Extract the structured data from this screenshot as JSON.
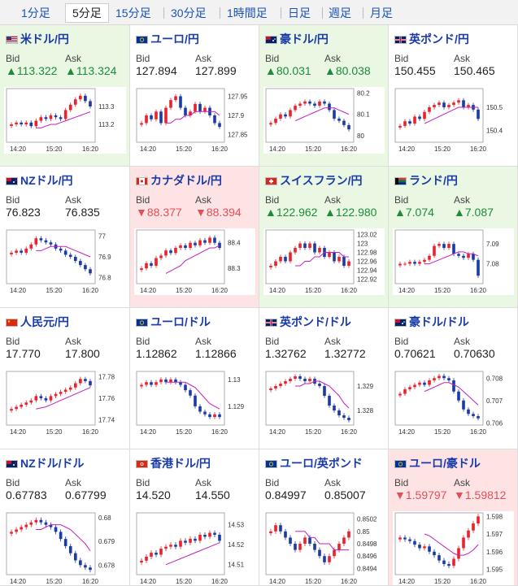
{
  "tabs": [
    "1分足",
    "5分足",
    "15分足",
    "30分足",
    "1時間足",
    "日足",
    "週足",
    "月足"
  ],
  "active_tab": "5分足",
  "colors": {
    "up": "#1e8a3a",
    "down": "#e0505a",
    "candle_up": "#e8232f",
    "candle_down": "#1c3aa6",
    "ma": "#c020c0"
  },
  "panels": [
    {
      "title": "米ドル/円",
      "flag": "US",
      "trend": "up",
      "bid": "▲113.322",
      "ask": "▲113.324",
      "bid_label": "Bid",
      "ask_label": "Ask",
      "chart_data": {
        "type": "candlestick",
        "x_ticks": [
          "14:20",
          "15:20",
          "16:20"
        ],
        "y_ticks": [
          "113.3",
          "113.2"
        ],
        "ylim": [
          113.1,
          113.4
        ],
        "close": [
          113.2,
          113.21,
          113.2,
          113.21,
          113.19,
          113.22,
          113.24,
          113.23,
          113.25,
          113.24,
          113.23,
          113.28,
          113.31,
          113.34,
          113.36,
          113.33,
          113.3
        ],
        "ma": [
          113.18,
          113.18,
          113.19,
          113.2,
          113.2,
          113.21,
          113.22,
          113.23,
          113.24,
          113.25,
          113.26,
          113.27
        ]
      }
    },
    {
      "title": "ユーロ/円",
      "flag": "EU",
      "trend": "flat",
      "bid": "127.894",
      "ask": "127.899",
      "bid_label": "Bid",
      "ask_label": "Ask",
      "chart_data": {
        "type": "candlestick",
        "x_ticks": [
          "14:20",
          "15:20",
          "16:20"
        ],
        "y_ticks": [
          "127.95",
          "127.9",
          "127.85"
        ],
        "ylim": [
          127.83,
          127.97
        ],
        "close": [
          127.88,
          127.9,
          127.89,
          127.91,
          127.88,
          127.92,
          127.94,
          127.95,
          127.92,
          127.9,
          127.91,
          127.93,
          127.91,
          127.92,
          127.9,
          127.88,
          127.87
        ],
        "ma": [
          127.88,
          127.88,
          127.89,
          127.89,
          127.9,
          127.9,
          127.91,
          127.91,
          127.91,
          127.91,
          127.91,
          127.9
        ]
      }
    },
    {
      "title": "豪ドル/円",
      "flag": "AU",
      "trend": "up",
      "bid": "▲80.031",
      "ask": "▲80.038",
      "bid_label": "Bid",
      "ask_label": "Ask",
      "chart_data": {
        "type": "candlestick",
        "x_ticks": [
          "14:20",
          "15:20",
          "16:20"
        ],
        "y_ticks": [
          "80.2",
          "80.1",
          "80"
        ],
        "ylim": [
          79.97,
          80.22
        ],
        "close": [
          80.06,
          80.08,
          80.1,
          80.09,
          80.12,
          80.14,
          80.15,
          80.16,
          80.15,
          80.14,
          80.16,
          80.15,
          80.12,
          80.08,
          80.07,
          80.05,
          80.03
        ],
        "ma": [
          80.07,
          80.08,
          80.09,
          80.1,
          80.11,
          80.12,
          80.13,
          80.13,
          80.13,
          80.12,
          80.11,
          80.1
        ]
      }
    },
    {
      "title": "英ポンド/円",
      "flag": "GB",
      "trend": "flat",
      "bid": "150.455",
      "ask": "150.465",
      "bid_label": "Bid",
      "ask_label": "Ask",
      "chart_data": {
        "type": "candlestick",
        "x_ticks": [
          "14:20",
          "15:20",
          "16:20"
        ],
        "y_ticks": [
          "150.5",
          "150.4"
        ],
        "ylim": [
          150.35,
          150.58
        ],
        "close": [
          150.42,
          150.44,
          150.43,
          150.46,
          150.45,
          150.48,
          150.5,
          150.51,
          150.52,
          150.5,
          150.51,
          150.52,
          150.53,
          150.5,
          150.51,
          150.49,
          150.45
        ],
        "ma": [
          150.43,
          150.44,
          150.45,
          150.46,
          150.47,
          150.48,
          150.49,
          150.5,
          150.5,
          150.5,
          150.5,
          150.5
        ]
      }
    },
    {
      "title": "NZドル/円",
      "flag": "NZ",
      "trend": "flat",
      "bid": "76.823",
      "ask": "76.835",
      "bid_label": "Bid",
      "ask_label": "Ask",
      "chart_data": {
        "type": "candlestick",
        "x_ticks": [
          "14:20",
          "15:20",
          "16:20"
        ],
        "y_ticks": [
          "77",
          "76.9",
          "76.8"
        ],
        "ylim": [
          76.77,
          77.03
        ],
        "close": [
          76.92,
          76.93,
          76.92,
          76.94,
          76.96,
          76.99,
          76.98,
          76.97,
          76.96,
          76.94,
          76.93,
          76.91,
          76.9,
          76.88,
          76.86,
          76.84,
          76.82
        ],
        "ma": [
          76.93,
          76.93,
          76.94,
          76.95,
          76.95,
          76.95,
          76.95,
          76.94,
          76.93,
          76.92,
          76.91,
          76.9
        ]
      }
    },
    {
      "title": "カナダドル/円",
      "flag": "CA",
      "trend": "down",
      "bid": "▼88.377",
      "ask": "▼88.394",
      "bid_label": "Bid",
      "ask_label": "Ask",
      "chart_data": {
        "type": "candlestick",
        "x_ticks": [
          "14:20",
          "15:20",
          "16:20"
        ],
        "y_ticks": [
          "88.4",
          "88.3"
        ],
        "ylim": [
          88.24,
          88.45
        ],
        "close": [
          88.3,
          88.32,
          88.31,
          88.34,
          88.35,
          88.37,
          88.36,
          88.38,
          88.39,
          88.38,
          88.4,
          88.39,
          88.41,
          88.4,
          88.42,
          88.4,
          88.38
        ],
        "ma": [
          88.28,
          88.29,
          88.3,
          88.31,
          88.33,
          88.34,
          88.35,
          88.36,
          88.37,
          88.38,
          88.38,
          88.39
        ]
      }
    },
    {
      "title": "スイスフラン/円",
      "flag": "CH",
      "trend": "up",
      "bid": "▲122.962",
      "ask": "▲122.980",
      "bid_label": "Bid",
      "ask_label": "Ask",
      "chart_data": {
        "type": "candlestick",
        "x_ticks": [
          "14:20",
          "15:20",
          "16:20"
        ],
        "y_ticks": [
          "123.02",
          "123",
          "122.98",
          "122.96",
          "122.94",
          "122.92"
        ],
        "ylim": [
          122.91,
          123.03
        ],
        "close": [
          122.95,
          122.96,
          122.97,
          122.96,
          122.98,
          122.99,
          123.0,
          122.99,
          123.0,
          122.98,
          122.99,
          122.97,
          122.98,
          122.96,
          122.97,
          122.95,
          122.96
        ],
        "ma": [
          122.95,
          122.95,
          122.96,
          122.96,
          122.97,
          122.97,
          122.98,
          122.98,
          122.98,
          122.98,
          122.97,
          122.97
        ]
      }
    },
    {
      "title": "ランド/円",
      "flag": "ZA",
      "trend": "up",
      "bid": "▲7.074",
      "ask": "▲7.087",
      "bid_label": "Bid",
      "ask_label": "Ask",
      "chart_data": {
        "type": "candlestick",
        "x_ticks": [
          "14:20",
          "15:20",
          "16:20"
        ],
        "y_ticks": [
          "7.09",
          "7.08"
        ],
        "ylim": [
          7.07,
          7.097
        ],
        "close": [
          7.08,
          7.08,
          7.081,
          7.08,
          7.081,
          7.082,
          7.084,
          7.089,
          7.09,
          7.088,
          7.09,
          7.085,
          7.084,
          7.083,
          7.085,
          7.082,
          7.074
        ],
        "ma": [
          7.08,
          7.08,
          7.081,
          7.082,
          7.083,
          7.084,
          7.085,
          7.086,
          7.086,
          7.085,
          7.085,
          7.084
        ]
      }
    },
    {
      "title": "人民元/円",
      "flag": "CN",
      "trend": "flat",
      "bid": "17.770",
      "ask": "17.800",
      "bid_label": "Bid",
      "ask_label": "Ask",
      "chart_data": {
        "type": "candlestick",
        "x_ticks": [
          "14:20",
          "15:20",
          "16:20"
        ],
        "y_ticks": [
          "17.78",
          "17.76",
          "17.74"
        ],
        "ylim": [
          17.735,
          17.785
        ],
        "close": [
          17.75,
          17.752,
          17.754,
          17.756,
          17.758,
          17.762,
          17.76,
          17.758,
          17.762,
          17.764,
          17.766,
          17.768,
          17.77,
          17.774,
          17.778,
          17.776,
          17.772
        ],
        "ma": [
          17.75,
          17.751,
          17.752,
          17.754,
          17.756,
          17.758,
          17.76,
          17.762,
          17.764,
          17.766,
          17.768,
          17.77
        ]
      }
    },
    {
      "title": "ユーロ/ドル",
      "flag": "EU",
      "trend": "flat",
      "bid": "1.12862",
      "ask": "1.12866",
      "bid_label": "Bid",
      "ask_label": "Ask",
      "chart_data": {
        "type": "candlestick",
        "x_ticks": [
          "14:20",
          "15:20",
          "16:20"
        ],
        "y_ticks": [
          "1.13",
          "1.129"
        ],
        "ylim": [
          1.1283,
          1.1303
        ],
        "close": [
          1.1298,
          1.1299,
          1.1298,
          1.1299,
          1.13,
          1.1299,
          1.13,
          1.1299,
          1.1298,
          1.1296,
          1.1294,
          1.129,
          1.1288,
          1.1287,
          1.1286,
          1.1287,
          1.1286
        ],
        "ma": [
          1.1299,
          1.1299,
          1.1299,
          1.1299,
          1.1299,
          1.1298,
          1.1297,
          1.1295,
          1.1293,
          1.1291,
          1.129,
          1.1289
        ]
      }
    },
    {
      "title": "英ポンド/ドル",
      "flag": "GB",
      "trend": "flat",
      "bid": "1.32762",
      "ask": "1.32772",
      "bid_label": "Bid",
      "ask_label": "Ask",
      "chart_data": {
        "type": "candlestick",
        "x_ticks": [
          "14:20",
          "15:20",
          "16:20"
        ],
        "y_ticks": [
          "1.329",
          "1.328"
        ],
        "ylim": [
          1.3274,
          1.3296
        ],
        "close": [
          1.3289,
          1.329,
          1.3291,
          1.3292,
          1.3293,
          1.3294,
          1.3293,
          1.3292,
          1.3293,
          1.3291,
          1.329,
          1.3286,
          1.3282,
          1.328,
          1.3278,
          1.3277,
          1.3276
        ],
        "ma": [
          1.329,
          1.329,
          1.3291,
          1.3291,
          1.3292,
          1.3292,
          1.3291,
          1.329,
          1.3288,
          1.3286,
          1.3283,
          1.3281
        ]
      }
    },
    {
      "title": "豪ドル/ドル",
      "flag": "AU",
      "trend": "flat",
      "bid": "0.70621",
      "ask": "0.70630",
      "bid_label": "Bid",
      "ask_label": "Ask",
      "chart_data": {
        "type": "candlestick",
        "x_ticks": [
          "14:20",
          "15:20",
          "16:20"
        ],
        "y_ticks": [
          "0.708",
          "0.707",
          "0.706"
        ],
        "ylim": [
          0.7059,
          0.7083
        ],
        "close": [
          0.7073,
          0.7075,
          0.7076,
          0.7077,
          0.7078,
          0.7077,
          0.7079,
          0.708,
          0.7081,
          0.708,
          0.7079,
          0.7074,
          0.707,
          0.7066,
          0.7064,
          0.7063,
          0.7062
        ],
        "ma": [
          0.7074,
          0.7075,
          0.7076,
          0.7077,
          0.7078,
          0.7078,
          0.7077,
          0.7076,
          0.7074,
          0.7072,
          0.707,
          0.7068
        ]
      }
    },
    {
      "title": "NZドル/ドル",
      "flag": "NZ",
      "trend": "flat",
      "bid": "0.67783",
      "ask": "0.67799",
      "bid_label": "Bid",
      "ask_label": "Ask",
      "chart_data": {
        "type": "candlestick",
        "x_ticks": [
          "14:20",
          "15:20",
          "16:20"
        ],
        "y_ticks": [
          "0.68",
          "0.679",
          "0.678"
        ],
        "ylim": [
          0.6776,
          0.6802
        ],
        "close": [
          0.6794,
          0.6795,
          0.6796,
          0.6797,
          0.6798,
          0.6799,
          0.6798,
          0.6797,
          0.6796,
          0.6794,
          0.6791,
          0.6788,
          0.6785,
          0.6782,
          0.678,
          0.6779,
          0.6778
        ],
        "ma": [
          0.6795,
          0.6795,
          0.6796,
          0.6797,
          0.6797,
          0.6797,
          0.6796,
          0.6795,
          0.6793,
          0.6791,
          0.6789,
          0.6786
        ]
      }
    },
    {
      "title": "香港ドル/円",
      "flag": "HK",
      "trend": "flat",
      "bid": "14.520",
      "ask": "14.550",
      "bid_label": "Bid",
      "ask_label": "Ask",
      "chart_data": {
        "type": "candlestick",
        "x_ticks": [
          "14:20",
          "15:20",
          "16:20"
        ],
        "y_ticks": [
          "14.53",
          "14.52",
          "14.51"
        ],
        "ylim": [
          14.505,
          14.536
        ],
        "close": [
          14.512,
          14.514,
          14.516,
          14.515,
          14.518,
          14.519,
          14.52,
          14.519,
          14.522,
          14.521,
          14.523,
          14.522,
          14.525,
          14.524,
          14.526,
          14.525,
          14.522
        ],
        "ma": [
          14.51,
          14.511,
          14.512,
          14.513,
          14.514,
          14.515,
          14.516,
          14.517,
          14.518,
          14.519,
          14.52,
          14.521
        ]
      }
    },
    {
      "title": "ユーロ/英ポンド",
      "flag": "EU",
      "trend": "flat",
      "bid": "0.84997",
      "ask": "0.85007",
      "bid_label": "Bid",
      "ask_label": "Ask",
      "chart_data": {
        "type": "candlestick",
        "x_ticks": [
          "14:20",
          "15:20",
          "16:20"
        ],
        "y_ticks": [
          "0.8502",
          "0.85",
          "0.8498",
          "0.8496",
          "0.8494"
        ],
        "ylim": [
          0.8493,
          0.8503
        ],
        "close": [
          0.85,
          0.8501,
          0.85,
          0.8499,
          0.8498,
          0.8497,
          0.8498,
          0.8499,
          0.8498,
          0.8497,
          0.8496,
          0.8495,
          0.8496,
          0.8497,
          0.8498,
          0.8499,
          0.85
        ],
        "ma": [
          0.85,
          0.85,
          0.85,
          0.8499,
          0.8499,
          0.8498,
          0.8498,
          0.8498,
          0.8497,
          0.8497,
          0.8497,
          0.8497
        ]
      }
    },
    {
      "title": "ユーロ/豪ドル",
      "flag": "EU",
      "trend": "down",
      "bid": "▼1.59797",
      "ask": "▼1.59812",
      "bid_label": "Bid",
      "ask_label": "Ask",
      "chart_data": {
        "type": "candlestick",
        "x_ticks": [
          "14:20",
          "15:20",
          "16:20"
        ],
        "y_ticks": [
          "1.598",
          "1.597",
          "1.596",
          "1.595"
        ],
        "ylim": [
          1.5947,
          1.5982
        ],
        "close": [
          1.5968,
          1.5967,
          1.5966,
          1.5964,
          1.5962,
          1.5963,
          1.596,
          1.5958,
          1.5955,
          1.5953,
          1.5952,
          1.5956,
          1.5962,
          1.5968,
          1.5972,
          1.5976,
          1.598
        ],
        "ma": [
          1.597,
          1.5969,
          1.5967,
          1.5965,
          1.5963,
          1.5961,
          1.5959,
          1.5958,
          1.5958,
          1.5959,
          1.5961,
          1.5964
        ]
      }
    }
  ]
}
